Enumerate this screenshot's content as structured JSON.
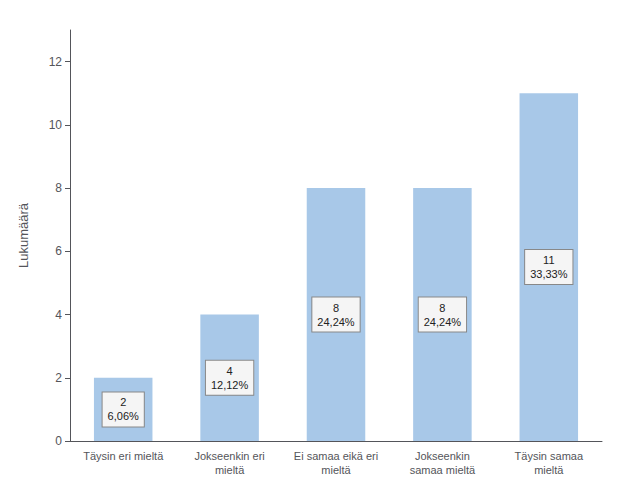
{
  "chart_data": {
    "type": "bar",
    "categories": [
      "Täysin eri mieltä",
      "Jokseenkin eri\nmieltä",
      "Ei samaa eikä eri\nmieltä",
      "Jokseenkin\nsamaa mieltä",
      "Täysin samaa\nmieltä"
    ],
    "values": [
      2,
      4,
      8,
      8,
      11
    ],
    "value_labels": [
      "2\n6,06%",
      "4\n12,12%",
      "8\n24,24%",
      "8\n24,24%",
      "11\n33,33%"
    ],
    "data_labels": true,
    "color": "#A8C8E8",
    "ylabel": "Lukumäärä",
    "ylim": [
      0,
      13
    ],
    "yticks": [
      0,
      2,
      4,
      6,
      8,
      10,
      12
    ],
    "grid": false
  }
}
